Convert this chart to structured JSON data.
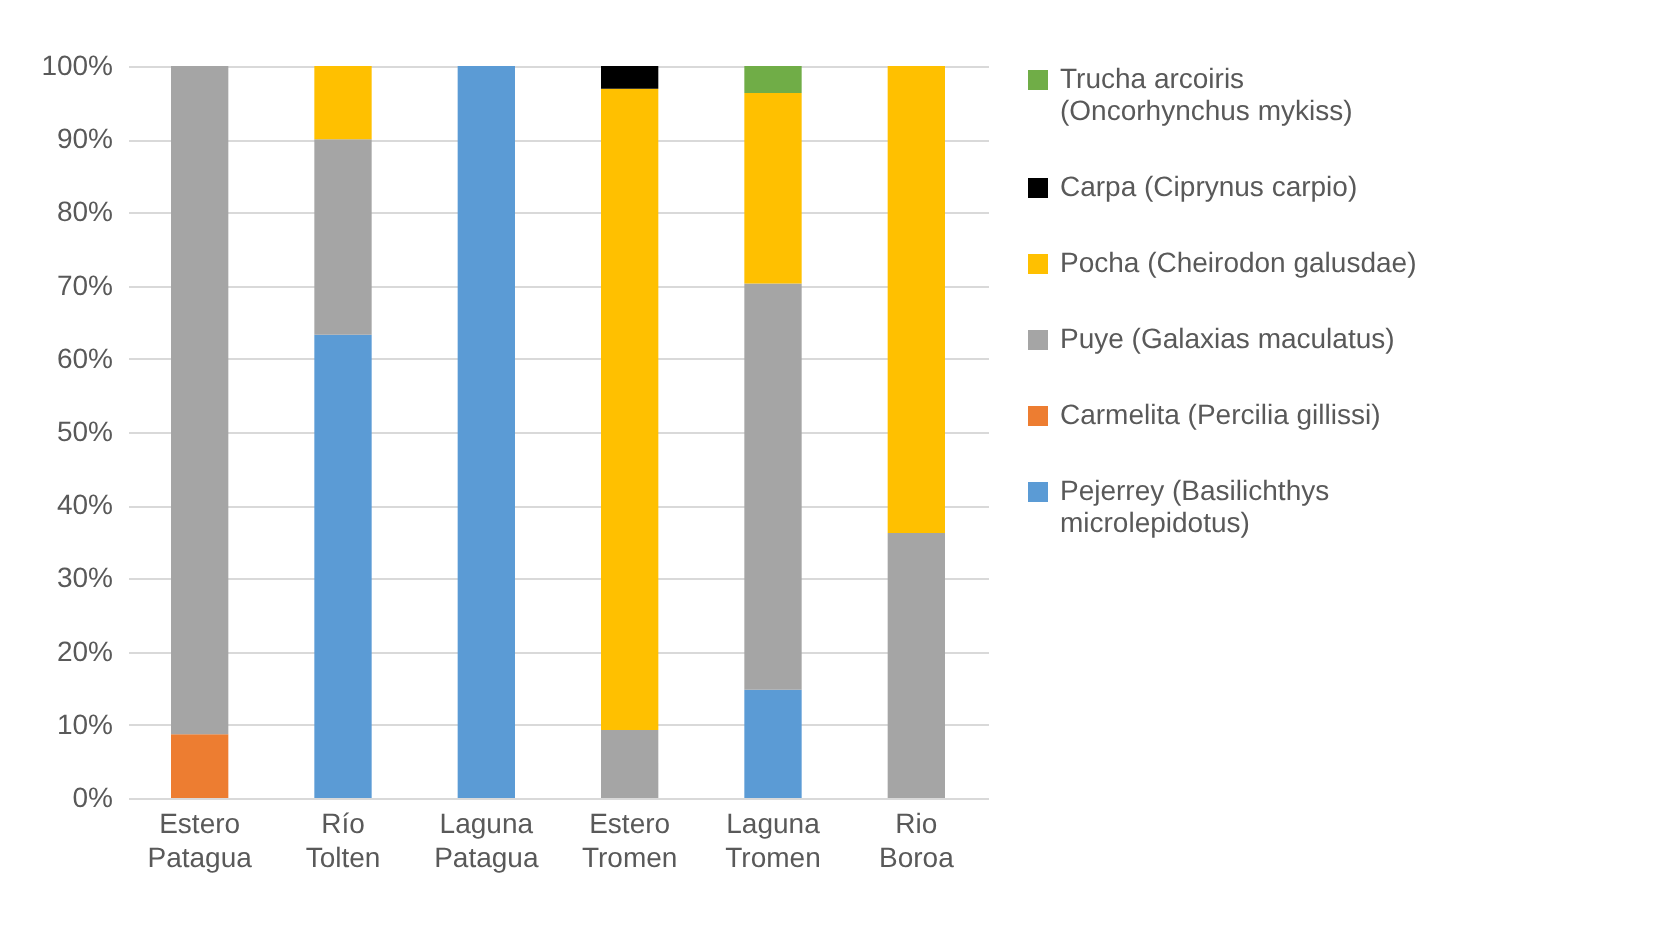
{
  "chart_data": {
    "type": "bar",
    "stacked": true,
    "categories": [
      "Estero Patagua",
      "Río Tolten",
      "Laguna Patagua",
      "Estero Tromen",
      "Laguna Tromen",
      "Rio Boroa"
    ],
    "series": [
      {
        "name": "Pejerrey (Basilichthys microlepidotus)",
        "color": "#5b9bd5",
        "values": [
          0,
          63.3,
          100,
          0,
          14.8,
          0
        ]
      },
      {
        "name": "Carmelita (Percilia gillissi)",
        "color": "#ed7d31",
        "values": [
          8.7,
          0,
          0,
          0,
          0,
          0
        ]
      },
      {
        "name": "Puye (Galaxias maculatus)",
        "color": "#a5a5a5",
        "values": [
          91.3,
          26.7,
          0,
          9.3,
          55.5,
          36.2
        ]
      },
      {
        "name": "Pocha (Cheirodon galusdae)",
        "color": "#ffc000",
        "values": [
          0,
          10,
          0,
          87.6,
          26,
          63.8
        ]
      },
      {
        "name": "Carpa (Ciprynus carpio)",
        "color": "#000000",
        "values": [
          0,
          0,
          0,
          3.1,
          0,
          0
        ]
      },
      {
        "name": "Trucha arcoiris (Oncorhynchus mykiss)",
        "color": "#70ad47",
        "values": [
          0,
          0,
          0,
          0,
          3.7,
          0
        ]
      }
    ],
    "ylim": [
      0,
      100
    ],
    "yticks": [
      {
        "value": 0,
        "label": "0%"
      },
      {
        "value": 10,
        "label": "10%"
      },
      {
        "value": 20,
        "label": "20%"
      },
      {
        "value": 30,
        "label": "30%"
      },
      {
        "value": 40,
        "label": "40%"
      },
      {
        "value": 50,
        "label": "50%"
      },
      {
        "value": 60,
        "label": "60%"
      },
      {
        "value": 70,
        "label": "70%"
      },
      {
        "value": 80,
        "label": "80%"
      },
      {
        "value": 90,
        "label": "90%"
      },
      {
        "value": 100,
        "label": "100%"
      }
    ],
    "grid": "y",
    "legend": "right"
  }
}
